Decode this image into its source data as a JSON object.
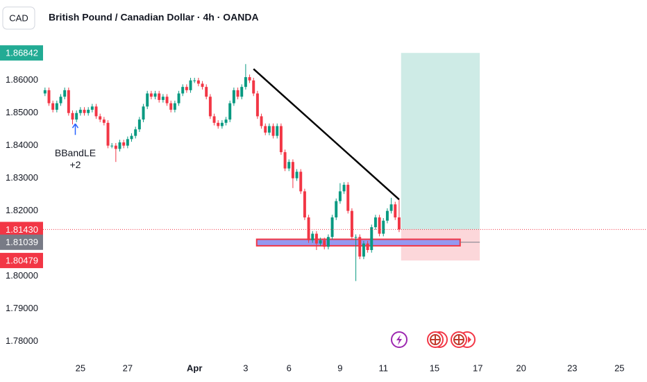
{
  "chart_data": {
    "type": "candlestick",
    "symbol": "CAD",
    "title": "British Pound / Canadian Dollar · 4h · OANDA",
    "x": [
      0,
      1,
      2,
      3,
      4,
      5,
      6,
      7,
      8,
      9,
      10,
      11,
      12,
      13,
      14,
      15,
      16,
      17,
      18,
      19,
      20,
      21,
      22,
      23,
      24,
      25,
      26,
      27,
      28,
      29,
      30,
      31,
      32,
      33,
      34,
      35,
      36,
      37,
      38,
      39,
      40,
      41,
      42,
      43,
      44,
      45,
      46,
      47,
      48,
      49,
      50,
      51,
      52,
      53,
      54,
      55,
      56,
      57,
      58,
      59,
      60,
      61,
      62,
      63,
      64,
      65,
      66,
      67,
      68,
      69,
      70,
      71,
      72,
      73,
      74,
      75,
      76,
      77,
      78,
      79,
      80,
      81,
      82,
      83,
      84,
      85,
      86,
      87,
      88,
      89,
      90
    ],
    "open": [
      1.856,
      1.857,
      1.853,
      1.851,
      1.853,
      1.855,
      1.857,
      1.85,
      1.848,
      1.85,
      1.851,
      1.85,
      1.851,
      1.852,
      1.849,
      1.848,
      1.847,
      1.84,
      1.84,
      1.839,
      1.841,
      1.84,
      1.842,
      1.843,
      1.845,
      1.848,
      1.852,
      1.856,
      1.855,
      1.856,
      1.854,
      1.855,
      1.853,
      1.851,
      1.853,
      1.856,
      1.858,
      1.857,
      1.86,
      1.86,
      1.859,
      1.858,
      1.855,
      1.849,
      1.847,
      1.846,
      1.847,
      1.848,
      1.853,
      1.857,
      1.855,
      1.858,
      1.861,
      1.86,
      1.856,
      1.849,
      1.846,
      1.844,
      1.846,
      1.843,
      1.846,
      1.838,
      1.833,
      1.835,
      1.83,
      1.832,
      1.826,
      1.818,
      1.811,
      1.813,
      1.81,
      1.811,
      1.809,
      1.812,
      1.818,
      1.823,
      1.826,
      1.828,
      1.82,
      1.812,
      1.812,
      1.806,
      1.81,
      1.808,
      1.815,
      1.818,
      1.813,
      1.817,
      1.82,
      1.822,
      1.818
    ],
    "high": [
      1.8578,
      1.8578,
      1.8538,
      1.8538,
      1.8558,
      1.8578,
      1.8578,
      1.8508,
      1.8508,
      1.8518,
      1.8518,
      1.8518,
      1.8528,
      1.8528,
      1.8498,
      1.8488,
      1.8478,
      1.8408,
      1.8408,
      1.8418,
      1.8418,
      1.8428,
      1.8438,
      1.8458,
      1.8488,
      1.8528,
      1.8568,
      1.8568,
      1.8568,
      1.8568,
      1.8558,
      1.8558,
      1.8538,
      1.8538,
      1.8568,
      1.8588,
      1.8588,
      1.8608,
      1.8608,
      1.8608,
      1.8598,
      1.8588,
      1.8558,
      1.8498,
      1.8478,
      1.8478,
      1.8488,
      1.8538,
      1.8578,
      1.8578,
      1.8588,
      1.865,
      1.8618,
      1.8608,
      1.8568,
      1.8498,
      1.8468,
      1.8468,
      1.8468,
      1.8468,
      1.8468,
      1.8388,
      1.8358,
      1.8358,
      1.8328,
      1.8328,
      1.8268,
      1.8188,
      1.8138,
      1.8138,
      1.8118,
      1.8118,
      1.8128,
      1.8188,
      1.8238,
      1.8285,
      1.8288,
      1.8288,
      1.8208,
      1.8128,
      1.8128,
      1.8108,
      1.8108,
      1.8158,
      1.8188,
      1.8188,
      1.8178,
      1.8208,
      1.824,
      1.8228,
      1.8235
    ],
    "low": [
      1.8552,
      1.8522,
      1.8502,
      1.8502,
      1.8522,
      1.8542,
      1.8492,
      1.8465,
      1.8472,
      1.8492,
      1.8492,
      1.8492,
      1.8502,
      1.8482,
      1.8472,
      1.8462,
      1.8392,
      1.8392,
      1.835,
      1.8382,
      1.8392,
      1.8392,
      1.8412,
      1.8422,
      1.8442,
      1.8472,
      1.8512,
      1.8542,
      1.8542,
      1.8532,
      1.8532,
      1.8522,
      1.8502,
      1.8502,
      1.8522,
      1.8552,
      1.8562,
      1.8562,
      1.8592,
      1.8582,
      1.8572,
      1.8542,
      1.8482,
      1.8462,
      1.8452,
      1.8452,
      1.8462,
      1.8472,
      1.8522,
      1.8542,
      1.8542,
      1.8572,
      1.8592,
      1.8552,
      1.8482,
      1.8452,
      1.8432,
      1.8432,
      1.8422,
      1.8422,
      1.8372,
      1.8322,
      1.8322,
      1.827,
      1.8292,
      1.8252,
      1.8172,
      1.8102,
      1.8102,
      1.808,
      1.8092,
      1.8082,
      1.8082,
      1.8112,
      1.8172,
      1.8222,
      1.8252,
      1.8192,
      1.8112,
      1.7985,
      1.8052,
      1.8052,
      1.8072,
      1.8072,
      1.8142,
      1.8122,
      1.8122,
      1.8162,
      1.8192,
      1.8172,
      1.8135
    ],
    "close": [
      1.857,
      1.853,
      1.851,
      1.853,
      1.855,
      1.857,
      1.85,
      1.848,
      1.85,
      1.851,
      1.85,
      1.851,
      1.852,
      1.849,
      1.848,
      1.847,
      1.84,
      1.84,
      1.839,
      1.841,
      1.84,
      1.842,
      1.843,
      1.845,
      1.848,
      1.852,
      1.856,
      1.855,
      1.856,
      1.854,
      1.855,
      1.853,
      1.851,
      1.853,
      1.856,
      1.858,
      1.857,
      1.86,
      1.86,
      1.859,
      1.858,
      1.855,
      1.849,
      1.847,
      1.846,
      1.847,
      1.848,
      1.853,
      1.857,
      1.855,
      1.858,
      1.861,
      1.86,
      1.856,
      1.849,
      1.846,
      1.844,
      1.846,
      1.843,
      1.846,
      1.838,
      1.833,
      1.835,
      1.83,
      1.832,
      1.826,
      1.818,
      1.811,
      1.813,
      1.81,
      1.811,
      1.809,
      1.812,
      1.818,
      1.823,
      1.826,
      1.828,
      1.82,
      1.812,
      1.812,
      1.806,
      1.81,
      1.808,
      1.815,
      1.818,
      1.813,
      1.817,
      1.82,
      1.822,
      1.818,
      1.8143
    ],
    "up_color": "#089981",
    "down_color": "#f23645",
    "xlim": [
      -0.5,
      153
    ],
    "xticks": [
      {
        "value": 9,
        "label": "25"
      },
      {
        "value": 21,
        "label": "27"
      },
      {
        "value": 38,
        "label": "Apr"
      },
      {
        "value": 51,
        "label": "3"
      },
      {
        "value": 62,
        "label": "6"
      },
      {
        "value": 75,
        "label": "9"
      },
      {
        "value": 86,
        "label": "11"
      },
      {
        "value": 99,
        "label": "15"
      },
      {
        "value": 110,
        "label": "17"
      },
      {
        "value": 121,
        "label": "20"
      },
      {
        "value": 134,
        "label": "23"
      },
      {
        "value": 146,
        "label": "25"
      }
    ],
    "ylim": [
      1.775,
      1.874
    ],
    "yticks": [
      {
        "value": 1.78,
        "label": "1.78000"
      },
      {
        "value": 1.79,
        "label": "1.79000"
      },
      {
        "value": 1.8,
        "label": "1.80000"
      },
      {
        "value": 1.82,
        "label": "1.82000"
      },
      {
        "value": 1.83,
        "label": "1.83000"
      },
      {
        "value": 1.84,
        "label": "1.84000"
      },
      {
        "value": 1.85,
        "label": "1.85000"
      },
      {
        "value": 1.86,
        "label": "1.86000"
      }
    ],
    "grid": false,
    "price_labels": [
      {
        "value": 1.86842,
        "label": "1.86842",
        "color": "#22ab94"
      },
      {
        "value": 1.8143,
        "label": "1.81430",
        "color": "#f23645"
      },
      {
        "value": 1.81039,
        "label": "1.81039",
        "color": "#787b86"
      },
      {
        "value": 1.80479,
        "label": "1.80479",
        "color": "#f23645"
      }
    ],
    "trendline": {
      "x": [
        53,
        90
      ],
      "y": [
        1.8635,
        1.8235
      ]
    },
    "zone": {
      "x": [
        53.8,
        105.5
      ],
      "y": [
        1.8093,
        1.8113
      ]
    },
    "position": {
      "x": [
        90.5,
        110.5
      ],
      "entry": 1.8143,
      "target": 1.86842,
      "stop": 1.80479
    },
    "signal": {
      "x": 7.7,
      "y": 1.8467,
      "text": "BBandLE",
      "count": "+2"
    }
  }
}
